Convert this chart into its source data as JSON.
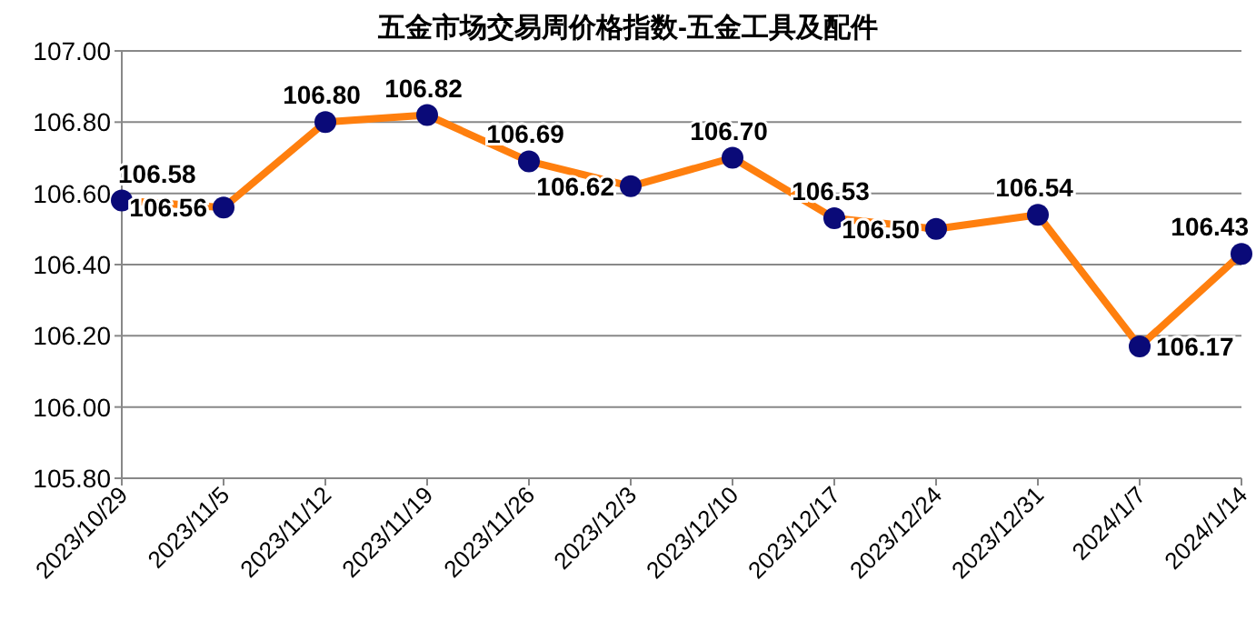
{
  "chart_data": {
    "type": "line",
    "title": "五金市场交易周价格指数-五金工具及配件",
    "categories": [
      "2023/10/29",
      "2023/11/5",
      "2023/11/12",
      "2023/11/19",
      "2023/11/26",
      "2023/12/3",
      "2023/12/10",
      "2023/12/17",
      "2023/12/24",
      "2023/12/31",
      "2024/1/7",
      "2024/1/14"
    ],
    "series": [
      {
        "color": "#ff7f0e",
        "values": [
          106.58,
          106.56,
          106.8,
          106.82,
          106.69,
          106.62,
          106.7,
          106.53,
          106.5,
          106.54,
          106.17,
          106.43
        ],
        "value_labels": [
          "106.58",
          "106.56",
          "106.80",
          "106.82",
          "106.69",
          "106.62",
          "106.70",
          "106.53",
          "106.50",
          "106.54",
          "106.17",
          "106.43"
        ]
      }
    ],
    "ylim": [
      105.8,
      107.0
    ],
    "yticks": [
      {
        "value": 105.8,
        "label": "105.80"
      },
      {
        "value": 106.0,
        "label": "106.00"
      },
      {
        "value": 106.2,
        "label": "106.20"
      },
      {
        "value": 106.4,
        "label": "106.40"
      },
      {
        "value": 106.6,
        "label": "106.60"
      },
      {
        "value": 106.8,
        "label": "106.80"
      },
      {
        "value": 107.0,
        "label": "107.00"
      }
    ],
    "grid": "y",
    "marker": "circle",
    "line_style": "solid"
  }
}
